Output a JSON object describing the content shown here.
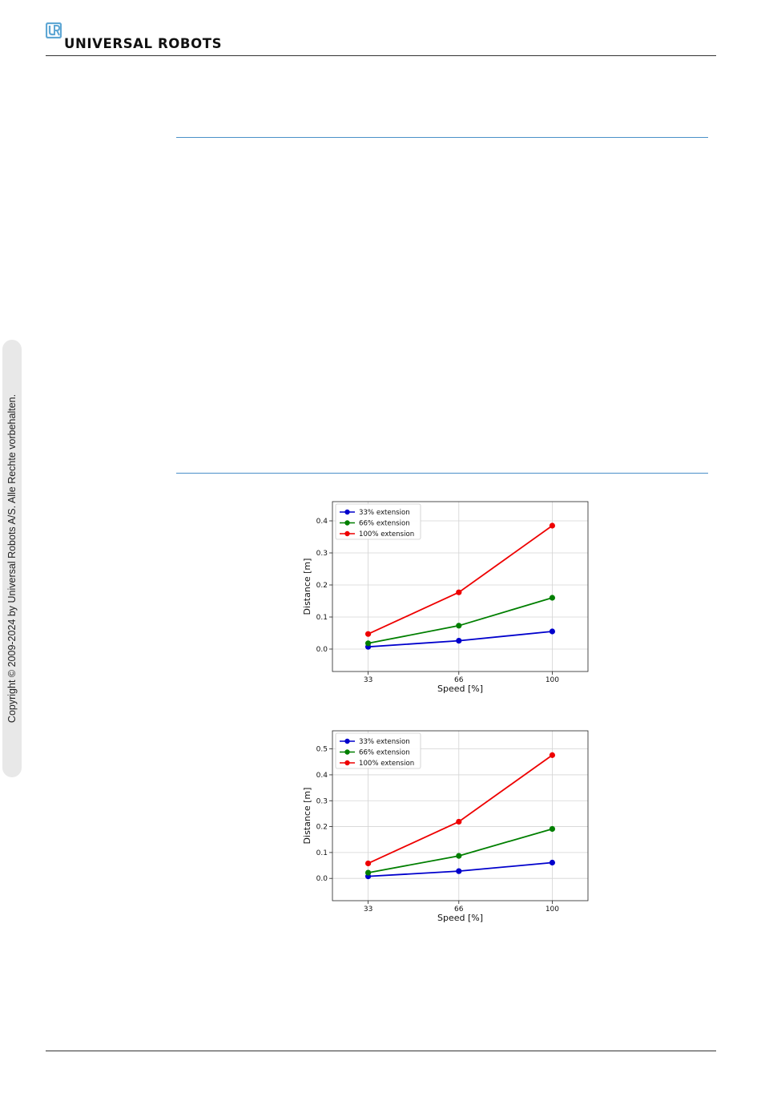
{
  "header": {
    "brand": "UNIVERSAL ROBOTS",
    "logo_icon": "ur-logo-icon",
    "logo_color": "#5fa7d4"
  },
  "sidebar": {
    "copyright": "Copyright © 2009-2024 by Universal Robots A/S. Alle Rechte vorbehalten."
  },
  "accent_color": "#4a90c8",
  "chart_data": [
    {
      "type": "line",
      "categories": [
        "33",
        "66",
        "100"
      ],
      "x": [
        33,
        66,
        100
      ],
      "xlabel": "Speed [%]",
      "ylabel": "Distance [m]",
      "xlim": [
        20,
        113
      ],
      "ylim": [
        -0.07,
        0.46
      ],
      "yticks": [
        0.0,
        0.1,
        0.2,
        0.3,
        0.4
      ],
      "ytick_labels": [
        "0.0",
        "0.1",
        "0.2",
        "0.3",
        "0.4"
      ],
      "grid": true,
      "legend_position": "top-left",
      "series": [
        {
          "name": "33% extension",
          "color": "#0000cc",
          "values": [
            0.007,
            0.026,
            0.055
          ]
        },
        {
          "name": "66% extension",
          "color": "#007f00",
          "values": [
            0.018,
            0.073,
            0.16
          ]
        },
        {
          "name": "100% extension",
          "color": "#ee0000",
          "values": [
            0.047,
            0.177,
            0.385
          ]
        }
      ]
    },
    {
      "type": "line",
      "categories": [
        "33",
        "66",
        "100"
      ],
      "x": [
        33,
        66,
        100
      ],
      "xlabel": "Speed [%]",
      "ylabel": "Distance [m]",
      "xlim": [
        20,
        113
      ],
      "ylim": [
        -0.086,
        0.57
      ],
      "yticks": [
        0.0,
        0.1,
        0.2,
        0.3,
        0.4,
        0.5
      ],
      "ytick_labels": [
        "0.0",
        "0.1",
        "0.2",
        "0.3",
        "0.4",
        "0.5"
      ],
      "grid": true,
      "legend_position": "top-left",
      "series": [
        {
          "name": "33% extension",
          "color": "#0000cc",
          "values": [
            0.008,
            0.028,
            0.061
          ]
        },
        {
          "name": "66% extension",
          "color": "#007f00",
          "values": [
            0.022,
            0.087,
            0.191
          ]
        },
        {
          "name": "100% extension",
          "color": "#ee0000",
          "values": [
            0.058,
            0.219,
            0.476
          ]
        }
      ]
    }
  ]
}
